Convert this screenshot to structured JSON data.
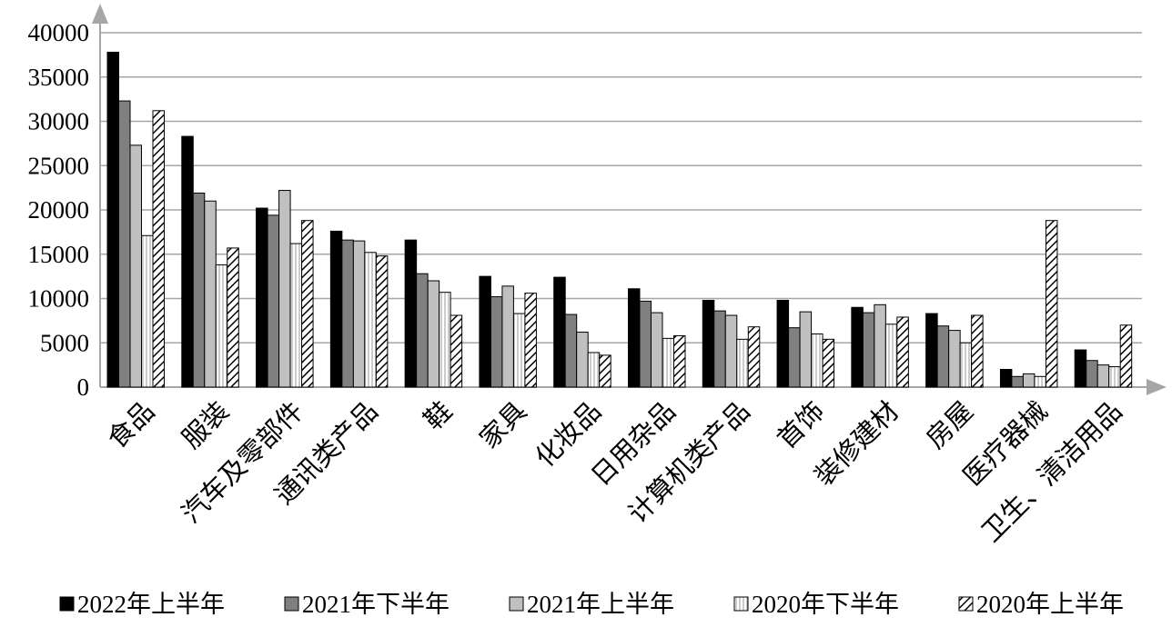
{
  "chart_data": {
    "type": "bar",
    "categories": [
      "食品",
      "服装",
      "汽车及零部件",
      "通讯类产品",
      "鞋",
      "家具",
      "化妆品",
      "日用杂品",
      "计算机类产品",
      "首饰",
      "装修建材",
      "房屋",
      "医疗器械",
      "卫生、清洁用品"
    ],
    "series": [
      {
        "name": "2022年上半年",
        "color": "#000000",
        "values": [
          37800,
          28300,
          20200,
          17600,
          16600,
          12500,
          12400,
          11100,
          9800,
          9800,
          9000,
          8300,
          2000,
          4200
        ]
      },
      {
        "name": "2021年下半年",
        "color": "#808080",
        "values": [
          32300,
          21900,
          19400,
          16600,
          12800,
          10200,
          8200,
          9700,
          8600,
          6700,
          8400,
          6900,
          1200,
          3000
        ]
      },
      {
        "name": "2021年上半年",
        "color": "#c0c0c0",
        "values": [
          27300,
          21000,
          22200,
          16500,
          12000,
          11400,
          6200,
          8400,
          8100,
          8500,
          9300,
          6400,
          1500,
          2500
        ]
      },
      {
        "name": "2020年下半年",
        "color": "#ffffff",
        "pattern": "stripes",
        "values": [
          17100,
          13800,
          16200,
          15200,
          10700,
          8300,
          3900,
          5500,
          5400,
          6000,
          7100,
          5000,
          1200,
          2300
        ]
      },
      {
        "name": "2020年上半年",
        "color": "#ffffff",
        "pattern": "hatch",
        "values": [
          31200,
          15700,
          18800,
          14800,
          8100,
          10600,
          3600,
          5800,
          6800,
          5400,
          7900,
          8100,
          18800,
          7000
        ]
      }
    ],
    "ylim": [
      0,
      40000
    ],
    "yticks": [
      0,
      5000,
      10000,
      15000,
      20000,
      25000,
      30000,
      35000,
      40000
    ],
    "grid": true,
    "legend": "bottom"
  }
}
